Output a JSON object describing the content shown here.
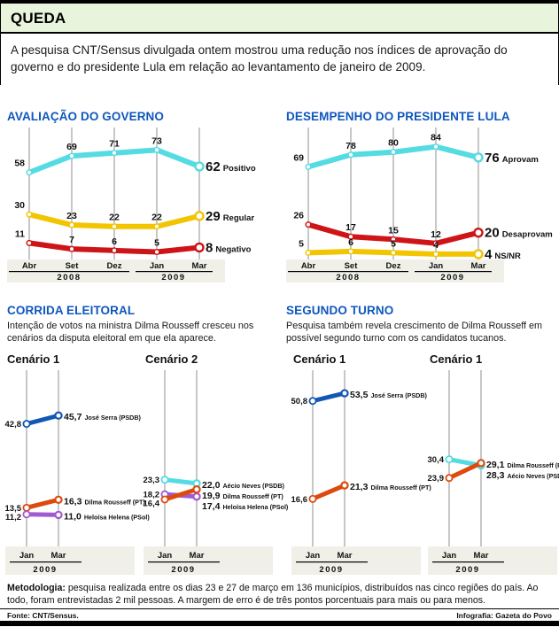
{
  "header": {
    "title": "QUEDA",
    "intro": "A pesquisa CNT/Sensus divulgada ontem mostrou uma redução nos índices de aprovação do governo e do presidente Lula em relação ao levantamento de janeiro de 2009."
  },
  "colors": {
    "header_bg": "#e8f4dc",
    "title_blue": "#0e57bd",
    "cyan": "#55dbe2",
    "yellow": "#f2c500",
    "red": "#cf1418",
    "blue": "#1257b5",
    "orange": "#dd4a0d",
    "purple": "#a15ad2",
    "band": "#f0f0e9",
    "grid": "#8f8f8f",
    "text": "#111111"
  },
  "sections": {
    "corrida": {
      "title": "CORRIDA ELEITORAL",
      "desc": "Intenção de votos na ministra Dilma Rousseff cresceu nos cenários da disputa eleitoral em que ela aparece."
    },
    "segundo": {
      "title": "SEGUNDO TURNO",
      "desc": "Pesquisa também revela crescimento de Dilma Rousseff em possível segundo turno com os candidatos tucanos."
    }
  },
  "chart_data": [
    {
      "id": "governo",
      "type": "line",
      "variant": "big",
      "title": "AVALIAÇÃO DO GOVERNO",
      "categories": [
        "Abr",
        "Set",
        "Dez",
        "Jan",
        "Mar"
      ],
      "year_groups": [
        {
          "label": "2008"
        },
        {
          "label": "2009"
        }
      ],
      "ylim": [
        0,
        85
      ],
      "grid": "vertical",
      "legend_position": "right",
      "series": [
        {
          "name": "Positivo",
          "color_key": "cyan",
          "values": [
            58,
            69,
            71,
            73,
            62
          ],
          "point_labels": [
            "58",
            "69",
            "71",
            "73"
          ],
          "end_label": "62"
        },
        {
          "name": "Regular",
          "color_key": "yellow",
          "values": [
            30,
            23,
            22,
            22,
            29
          ],
          "point_labels": [
            "30",
            "23",
            "22",
            "22"
          ],
          "end_label": "29"
        },
        {
          "name": "Negativo",
          "color_key": "red",
          "values": [
            11,
            7,
            6,
            5,
            8
          ],
          "point_labels": [
            "11",
            "7",
            "6",
            "5"
          ],
          "end_label": "8"
        }
      ]
    },
    {
      "id": "lula",
      "type": "line",
      "variant": "big",
      "title": "DESEMPENHO DO PRESIDENTE LULA",
      "categories": [
        "Abr",
        "Set",
        "Dez",
        "Jan",
        "Mar"
      ],
      "year_groups": [
        {
          "label": "2008"
        },
        {
          "label": "2009"
        }
      ],
      "ylim": [
        0,
        95
      ],
      "grid": "vertical",
      "legend_position": "right",
      "series": [
        {
          "name": "Aprovam",
          "color_key": "cyan",
          "values": [
            69,
            78,
            80,
            84,
            76
          ],
          "point_labels": [
            "69",
            "78",
            "80",
            "84"
          ],
          "end_label": "76"
        },
        {
          "name": "Desaprovam",
          "color_key": "red",
          "values": [
            26,
            17,
            15,
            12,
            20
          ],
          "point_labels": [
            "26",
            "17",
            "15",
            "12"
          ],
          "end_label": "20"
        },
        {
          "name": "NS/NR",
          "color_key": "yellow",
          "values": [
            5,
            6,
            5,
            4,
            4
          ],
          "point_labels": [
            "5",
            "6",
            "5",
            "4"
          ],
          "end_label": "4"
        }
      ]
    },
    {
      "id": "corrida-c1",
      "type": "line",
      "variant": "mini",
      "title": "Cenário 1",
      "categories": [
        "Jan",
        "Mar"
      ],
      "year_groups": [
        {
          "label": "2009"
        }
      ],
      "ylim": [
        0,
        60
      ],
      "grid": "vertical",
      "legend_position": "right",
      "series": [
        {
          "name": "José Serra (PSDB)",
          "color_key": "blue",
          "values": [
            42.8,
            45.7
          ],
          "start_label": "42,8",
          "end_label": "45,7"
        },
        {
          "name": "Dilma Rousseff (PT)",
          "color_key": "orange",
          "values": [
            13.5,
            16.3
          ],
          "start_label": "13,5",
          "end_label": "16,3"
        },
        {
          "name": "Heloísa Helena (PSol)",
          "color_key": "purple",
          "values": [
            11.2,
            11.0
          ],
          "start_label": "11,2",
          "end_label": "11,0"
        }
      ]
    },
    {
      "id": "corrida-c2",
      "type": "line",
      "variant": "mini",
      "title": "Cenário 2",
      "categories": [
        "Jan",
        "Mar"
      ],
      "year_groups": [
        {
          "label": "2009"
        }
      ],
      "ylim": [
        0,
        60
      ],
      "grid": "vertical",
      "legend_position": "right",
      "series": [
        {
          "name": "Aécio Neves (PSDB)",
          "color_key": "cyan",
          "values": [
            23.3,
            22.0
          ],
          "start_label": "23,3",
          "end_label": "22,0"
        },
        {
          "name": "Heloísa Helena (PSol)",
          "color_key": "purple",
          "values": [
            18.2,
            17.4
          ],
          "start_label": "18,2",
          "end_label": "17,4"
        },
        {
          "name": "Dilma Rousseff (PT)",
          "color_key": "orange",
          "values": [
            16.4,
            19.9
          ],
          "start_label": "16,4",
          "end_label": "19,9"
        }
      ]
    },
    {
      "id": "segundo-c1",
      "type": "line",
      "variant": "mini",
      "title": "Cenário 1",
      "categories": [
        "Jan",
        "Mar"
      ],
      "year_groups": [
        {
          "label": "2009"
        }
      ],
      "ylim": [
        0,
        60
      ],
      "grid": "vertical",
      "legend_position": "right",
      "series": [
        {
          "name": "José Serra (PSDB)",
          "color_key": "blue",
          "values": [
            50.8,
            53.5
          ],
          "start_label": "50,8",
          "end_label": "53,5"
        },
        {
          "name": "Dilma Rousseff (PT)",
          "color_key": "orange",
          "values": [
            16.6,
            21.3
          ],
          "start_label": "16,6",
          "end_label": "21,3"
        }
      ]
    },
    {
      "id": "segundo-c2",
      "type": "line",
      "variant": "mini",
      "title": "Cenário 1",
      "categories": [
        "Jan",
        "Mar"
      ],
      "year_groups": [
        {
          "label": "2009"
        }
      ],
      "ylim": [
        0,
        60
      ],
      "grid": "vertical",
      "legend_position": "right",
      "series": [
        {
          "name": "Aécio Neves (PSDB)",
          "color_key": "cyan",
          "values": [
            30.4,
            28.3
          ],
          "start_label": "30,4",
          "end_label": "28,3"
        },
        {
          "name": "Dilma Rousseff (PT)",
          "color_key": "orange",
          "values": [
            23.9,
            29.1
          ],
          "start_label": "23,9",
          "end_label": "29,1"
        }
      ]
    }
  ],
  "footer": {
    "methodology_bold": "Metodologia:",
    "methodology": " pesquisa realizada entre os dias 23 e 27 de março em 136 municípios, distribuídos nas cinco regiões do país. Ao todo, foram entrevistadas 2 mil pessoas. A margem de erro é de três pontos porcentuais para mais ou para menos.",
    "source": "Fonte: CNT/Sensus.",
    "credit": "Infografia: Gazeta do Povo"
  }
}
